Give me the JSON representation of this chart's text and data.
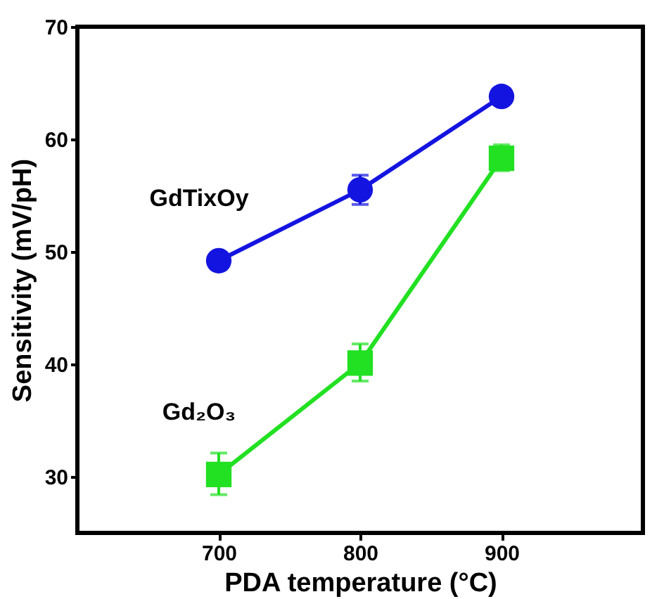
{
  "chart_data": {
    "type": "line",
    "xlabel": "PDA temperature (°C)",
    "ylabel": "Sensitivity (mV/pH)",
    "x": [
      700,
      800,
      900
    ],
    "xlim": [
      600,
      1000
    ],
    "xticks": [
      700,
      800,
      900
    ],
    "ylim": [
      25,
      70
    ],
    "yticks": [
      30,
      40,
      50,
      60,
      70
    ],
    "grid": false,
    "series": [
      {
        "name": "GdTixOy",
        "color": "#1414e0",
        "marker": "circle",
        "values": [
          49.2,
          55.5,
          63.8
        ],
        "errors": [
          null,
          1.3,
          null
        ]
      },
      {
        "name": "Gd₂O₃",
        "color": "#22e022",
        "marker": "square",
        "values": [
          30.2,
          40.1,
          58.3
        ],
        "errors": [
          [
            28.4,
            32.1
          ],
          [
            38.5,
            41.8
          ],
          [
            57.2,
            59.5
          ]
        ]
      }
    ]
  }
}
